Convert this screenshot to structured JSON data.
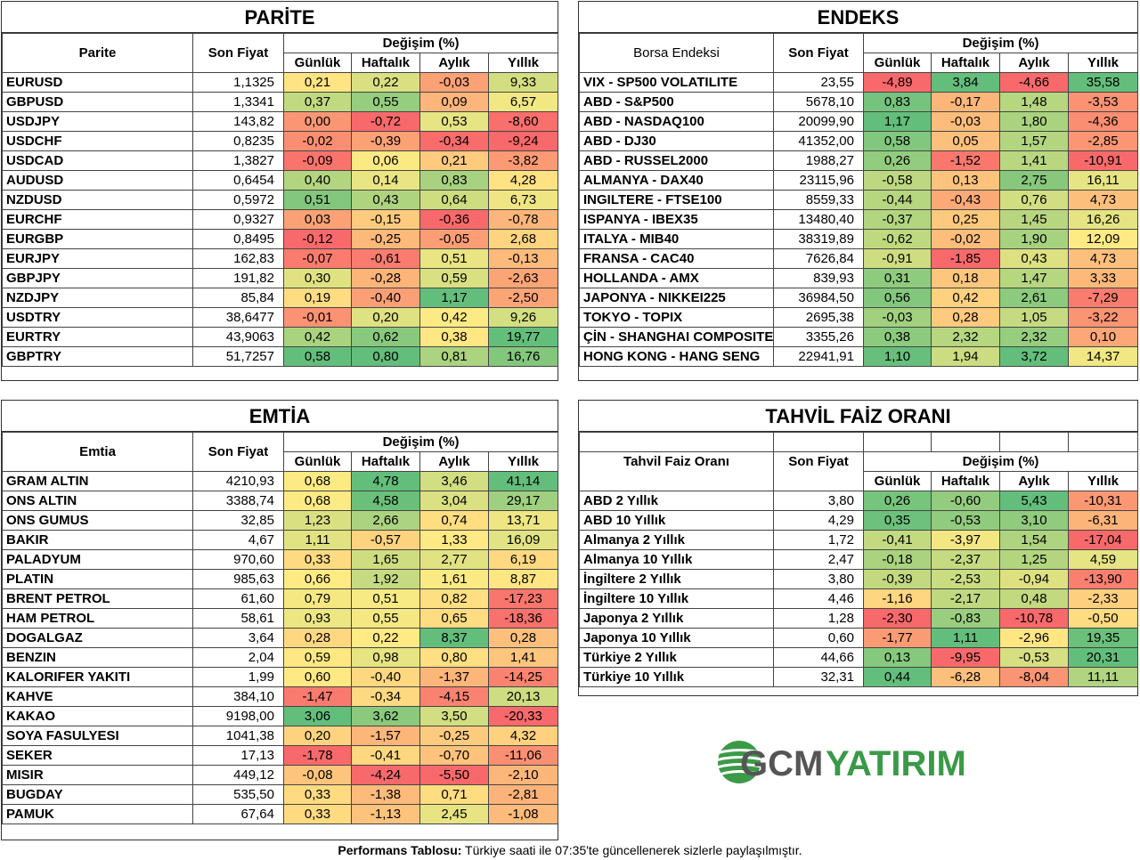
{
  "header_labels": {
    "son_fiyat": "Son Fiyat",
    "degisim": "Değişim (%)",
    "gunluk": "Günlük",
    "haftalik": "Haftalık",
    "aylik": "Aylık",
    "yillik": "Yıllık"
  },
  "parite": {
    "title": "PARİTE",
    "col_name": "Parite",
    "rows": [
      [
        "EURUSD",
        "1,1325",
        "0,21",
        "0,22",
        "-0,03",
        "9,33"
      ],
      [
        "GBPUSD",
        "1,3341",
        "0,37",
        "0,55",
        "0,09",
        "6,57"
      ],
      [
        "USDJPY",
        "143,82",
        "0,00",
        "-0,72",
        "0,53",
        "-8,60"
      ],
      [
        "USDCHF",
        "0,8235",
        "-0,02",
        "-0,39",
        "-0,34",
        "-9,24"
      ],
      [
        "USDCAD",
        "1,3827",
        "-0,09",
        "0,06",
        "0,21",
        "-3,82"
      ],
      [
        "AUDUSD",
        "0,6454",
        "0,40",
        "0,14",
        "0,83",
        "4,28"
      ],
      [
        "NZDUSD",
        "0,5972",
        "0,51",
        "0,43",
        "0,64",
        "6,73"
      ],
      [
        "EURCHF",
        "0,9327",
        "0,03",
        "-0,15",
        "-0,36",
        "-0,78"
      ],
      [
        "EURGBP",
        "0,8495",
        "-0,12",
        "-0,25",
        "-0,05",
        "2,68"
      ],
      [
        "EURJPY",
        "162,83",
        "-0,07",
        "-0,61",
        "0,51",
        "-0,13"
      ],
      [
        "GBPJPY",
        "191,82",
        "0,30",
        "-0,28",
        "0,59",
        "-2,63"
      ],
      [
        "NZDJPY",
        "85,84",
        "0,19",
        "-0,40",
        "1,17",
        "-2,50"
      ],
      [
        "USDTRY",
        "38,6477",
        "-0,01",
        "0,20",
        "0,42",
        "9,26"
      ],
      [
        "EURTRY",
        "43,9063",
        "0,42",
        "0,62",
        "0,38",
        "19,77"
      ],
      [
        "GBPTRY",
        "51,7257",
        "0,58",
        "0,80",
        "0,81",
        "16,76"
      ]
    ]
  },
  "endeks": {
    "title": "ENDEKS",
    "col_name": "Borsa Endeksi",
    "rows": [
      [
        "VIX  - SP500 VOLATILITE",
        "23,55",
        "-4,89",
        "3,84",
        "-4,66",
        "35,58"
      ],
      [
        "ABD - S&P500",
        "5678,10",
        "0,83",
        "-0,17",
        "1,48",
        "-3,53"
      ],
      [
        "ABD - NASDAQ100",
        "20099,90",
        "1,17",
        "-0,03",
        "1,80",
        "-4,36"
      ],
      [
        "ABD - DJ30",
        "41352,00",
        "0,58",
        "0,05",
        "1,57",
        "-2,85"
      ],
      [
        "ABD - RUSSEL2000",
        "1988,27",
        "0,26",
        "-1,52",
        "1,41",
        "-10,91"
      ],
      [
        "ALMANYA - DAX40",
        "23115,96",
        "-0,58",
        "0,13",
        "2,75",
        "16,11"
      ],
      [
        "INGILTERE - FTSE100",
        "8559,33",
        "-0,44",
        "-0,43",
        "0,76",
        "4,73"
      ],
      [
        "ISPANYA - IBEX35",
        "13480,40",
        "-0,37",
        "0,25",
        "1,45",
        "16,26"
      ],
      [
        "ITALYA - MIB40",
        "38319,89",
        "-0,62",
        "-0,02",
        "1,90",
        "12,09"
      ],
      [
        "FRANSA - CAC40",
        "7626,84",
        "-0,91",
        "-1,85",
        "0,43",
        "4,73"
      ],
      [
        "HOLLANDA - AMX",
        "839,93",
        "0,31",
        "0,18",
        "1,47",
        "3,33"
      ],
      [
        "JAPONYA - NIKKEI225",
        "36984,50",
        "0,56",
        "0,42",
        "2,61",
        "-7,29"
      ],
      [
        "TOKYO - TOPIX",
        "2695,38",
        "-0,03",
        "0,28",
        "1,05",
        "-3,22"
      ],
      [
        "ÇİN - SHANGHAI COMPOSITE",
        "3355,26",
        "0,38",
        "2,32",
        "2,32",
        "0,10"
      ],
      [
        "HONG KONG - HANG SENG",
        "22941,91",
        "1,10",
        "1,94",
        "3,72",
        "14,37"
      ]
    ]
  },
  "emtia": {
    "title": "EMTİA",
    "col_name": "Emtia",
    "rows": [
      [
        "GRAM ALTIN",
        "4210,93",
        "0,68",
        "4,78",
        "3,46",
        "41,14"
      ],
      [
        "ONS ALTIN",
        "3388,74",
        "0,68",
        "4,58",
        "3,04",
        "29,17"
      ],
      [
        "ONS GUMUS",
        "32,85",
        "1,23",
        "2,66",
        "0,74",
        "13,71"
      ],
      [
        "BAKIR",
        "4,67",
        "1,11",
        "-0,57",
        "1,33",
        "16,09"
      ],
      [
        "PALADYUM",
        "970,60",
        "0,33",
        "1,65",
        "2,77",
        "6,19"
      ],
      [
        "PLATIN",
        "985,63",
        "0,66",
        "1,92",
        "1,61",
        "8,87"
      ],
      [
        "BRENT PETROL",
        "61,60",
        "0,79",
        "0,51",
        "0,82",
        "-17,23"
      ],
      [
        "HAM PETROL",
        "58,61",
        "0,93",
        "0,55",
        "0,65",
        "-18,36"
      ],
      [
        "DOGALGAZ",
        "3,64",
        "0,28",
        "0,22",
        "8,37",
        "0,28"
      ],
      [
        "BENZIN",
        "2,04",
        "0,59",
        "0,98",
        "0,80",
        "1,41"
      ],
      [
        "KALORIFER YAKITI",
        "1,99",
        "0,60",
        "-0,40",
        "-1,37",
        "-14,25"
      ],
      [
        "KAHVE",
        "384,10",
        "-1,47",
        "-0,34",
        "-4,15",
        "20,13"
      ],
      [
        "KAKAO",
        "9198,00",
        "3,06",
        "3,62",
        "3,50",
        "-20,33"
      ],
      [
        "SOYA FASULYESI",
        "1041,38",
        "0,20",
        "-1,57",
        "-0,25",
        "4,32"
      ],
      [
        "SEKER",
        "17,13",
        "-1,78",
        "-0,41",
        "-0,70",
        "-11,06"
      ],
      [
        "MISIR",
        "449,12",
        "-0,08",
        "-4,24",
        "-5,50",
        "-2,10"
      ],
      [
        "BUGDAY",
        "535,50",
        "0,33",
        "-1,38",
        "0,71",
        "-2,81"
      ],
      [
        "PAMUK",
        "67,64",
        "0,33",
        "-1,13",
        "2,45",
        "-1,08"
      ]
    ]
  },
  "tahvil": {
    "title": "TAHVİL FAİZ ORANI",
    "col_name": "Tahvil Faiz Oranı",
    "rows": [
      [
        "ABD 2 Yıllık",
        "3,80",
        "0,26",
        "-0,60",
        "5,43",
        "-10,31"
      ],
      [
        "ABD 10 Yıllık",
        "4,29",
        "0,35",
        "-0,53",
        "3,10",
        "-6,31"
      ],
      [
        "Almanya 2 Yıllık",
        "1,72",
        "-0,41",
        "-3,97",
        "1,54",
        "-17,04"
      ],
      [
        "Almanya 10 Yıllık",
        "2,47",
        "-0,18",
        "-2,37",
        "1,25",
        "4,59"
      ],
      [
        "İngiltere 2 Yıllık",
        "3,80",
        "-0,39",
        "-2,53",
        "-0,94",
        "-13,90"
      ],
      [
        "İngiltere 10 Yıllık",
        "4,46",
        "-1,16",
        "-2,17",
        "0,48",
        "-2,33"
      ],
      [
        "Japonya 2 Yıllık",
        "1,28",
        "-2,30",
        "-0,83",
        "-10,78",
        "-0,50"
      ],
      [
        "Japonya 10 Yıllık",
        "0,60",
        "-1,77",
        "1,11",
        "-2,96",
        "19,35"
      ],
      [
        "Türkiye 2 Yıllık",
        "44,66",
        "0,13",
        "-9,95",
        "-0,53",
        "20,31"
      ],
      [
        "Türkiye 10 Yıllık",
        "32,31",
        "0,44",
        "-6,28",
        "-8,04",
        "11,11"
      ]
    ]
  },
  "logo": {
    "text_gcm": "GCM",
    "text_yatirim": "YATIRIM",
    "color_green": "#3a9a47",
    "color_gray": "#555555"
  },
  "footer": {
    "bold": "Performans Tablosu:",
    "text": " Türkiye saati ile 07:35'te güncellenerek sizlerle paylaşılmıştır."
  },
  "colors": {
    "red": "#f8696b",
    "yellow": "#ffeb84",
    "green": "#63be7b"
  }
}
